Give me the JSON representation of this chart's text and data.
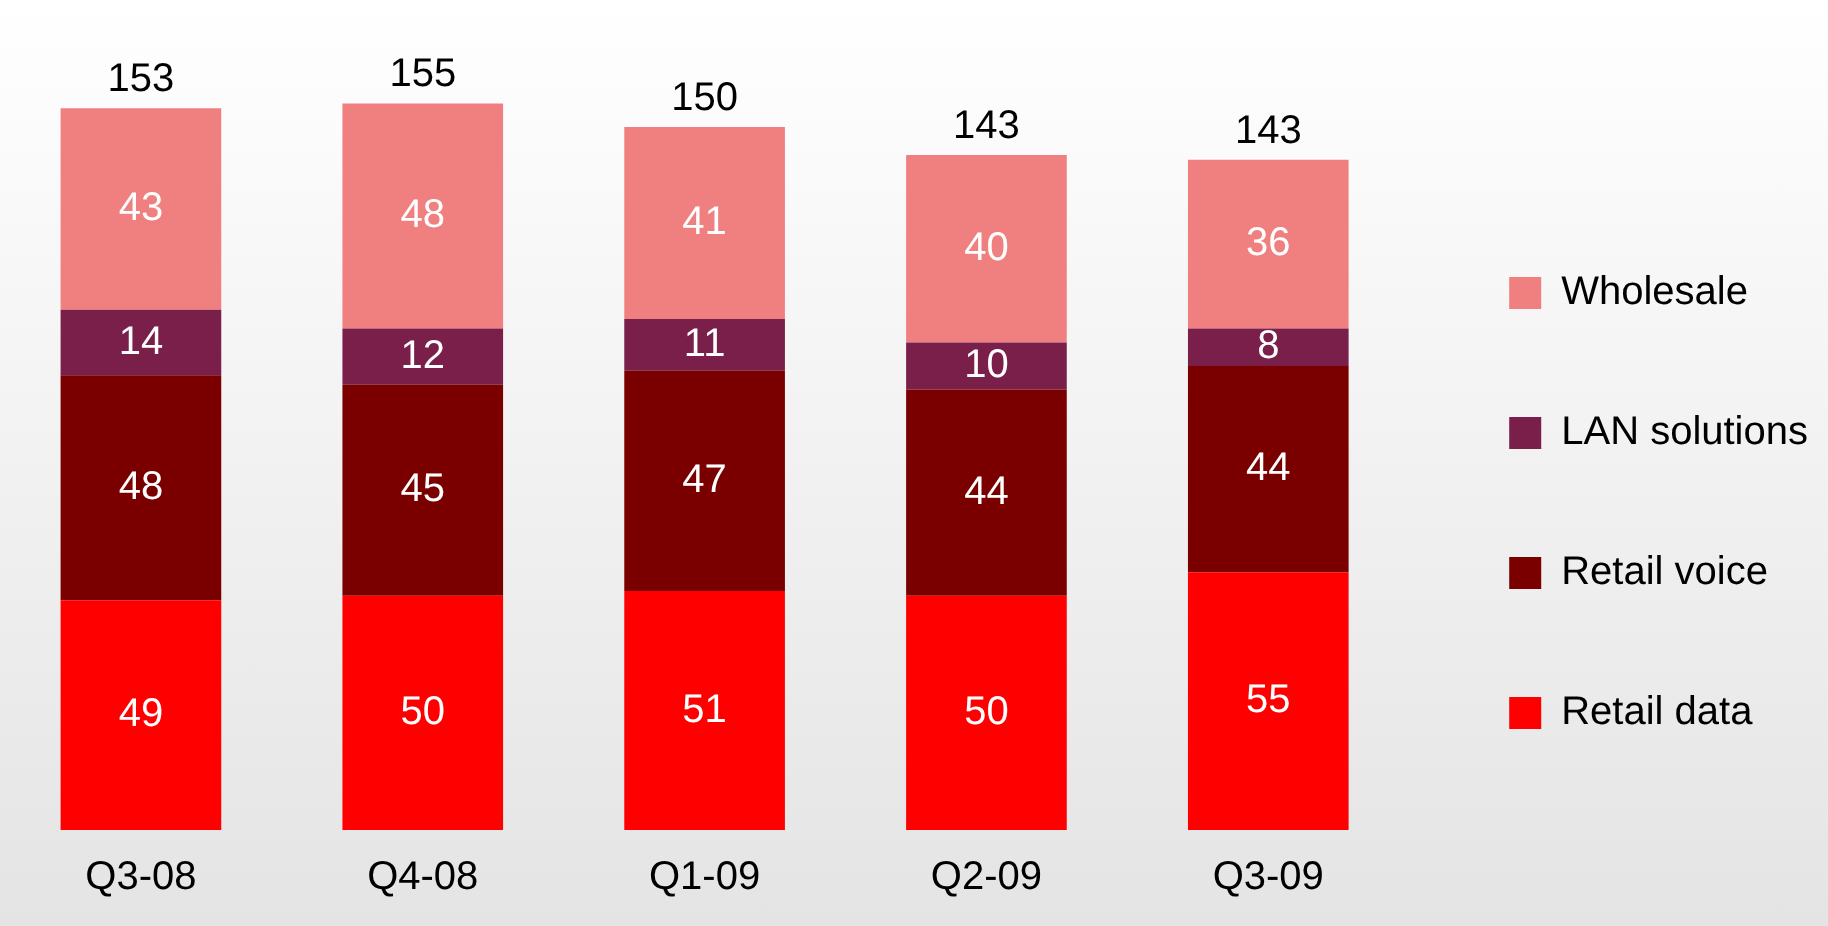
{
  "chart_data": {
    "type": "bar",
    "stacked": true,
    "categories": [
      "Q3-08",
      "Q4-08",
      "Q1-09",
      "Q2-09",
      "Q3-09"
    ],
    "series": [
      {
        "name": "Retail data",
        "color": "#ff0000",
        "values": [
          49,
          50,
          51,
          50,
          55
        ]
      },
      {
        "name": "Retail voice",
        "color": "#7a0000",
        "values": [
          48,
          45,
          47,
          44,
          44
        ]
      },
      {
        "name": "LAN solutions",
        "color": "#7a1f4a",
        "values": [
          14,
          12,
          11,
          10,
          8
        ]
      },
      {
        "name": "Wholesale",
        "color": "#f08080",
        "values": [
          43,
          48,
          41,
          40,
          36
        ]
      }
    ],
    "data_labels": true,
    "totals": [
      "153",
      "155",
      "150",
      "143",
      "143"
    ],
    "legend": "right",
    "grid": false
  }
}
